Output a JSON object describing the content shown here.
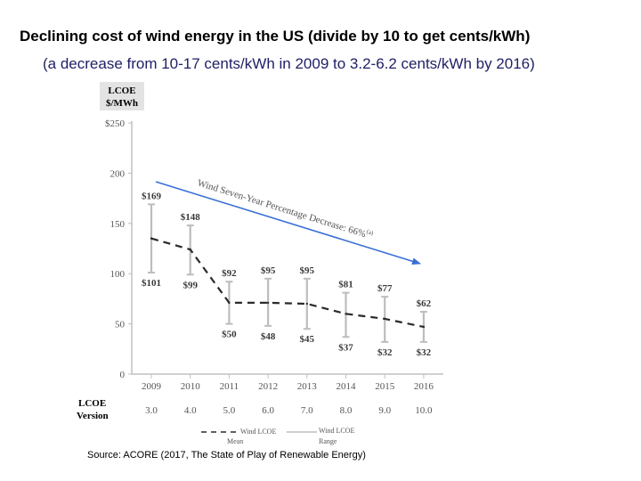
{
  "title": "Declining cost of wind energy in the US (divide by 10 to get cents/kWh)",
  "subtitle": "(a decrease from 10-17 cents/kWh in 2009 to 3.2-6.2 cents/kWh by 2016)",
  "source": "Source: ACORE (2017, The State of Play of Renewable Energy)",
  "colors": {
    "axis": "#c0c0c0",
    "gridline": "#d9d9d9",
    "range_bar": "#bdbdbd",
    "mean_line": "#2a2a2a",
    "trend_arrow": "#3a6fd8",
    "ylabel_box": "#e3e3e3"
  },
  "chart_data": {
    "type": "line",
    "ylabel_line1": "LCOE",
    "ylabel_line2": "$/MWh",
    "ylim": [
      0,
      250
    ],
    "yticks": [
      "0",
      "50",
      "100",
      "150",
      "200",
      "$250"
    ],
    "x": [
      "2009",
      "2010",
      "2011",
      "2012",
      "2013",
      "2014",
      "2015",
      "2016"
    ],
    "version_label_line1": "LCOE",
    "version_label_line2": "Version",
    "versions": [
      "3.0",
      "4.0",
      "5.0",
      "6.0",
      "7.0",
      "8.0",
      "9.0",
      "10.0"
    ],
    "series": [
      {
        "name": "Wind LCOE Mean",
        "style": "dashed",
        "values": [
          135,
          124,
          71,
          71,
          70,
          60,
          55,
          47
        ]
      },
      {
        "name": "Wind LCOE Range",
        "style": "range",
        "high": [
          169,
          148,
          92,
          95,
          95,
          81,
          77,
          62
        ],
        "low": [
          101,
          99,
          50,
          48,
          45,
          37,
          32,
          32
        ],
        "high_labels": [
          "$169",
          "$148",
          "$92",
          "$95",
          "$95",
          "$81",
          "$77",
          "$62"
        ],
        "low_labels": [
          "$101",
          "$99",
          "$50",
          "$48",
          "$45",
          "$37",
          "$32",
          "$32"
        ]
      }
    ],
    "annotation": "Wind Seven-Year Percentage Decrease: 66%",
    "annotation_sup": "(a)",
    "legend": [
      {
        "line1": "Wind LCOE",
        "line2": "Mean"
      },
      {
        "line1": "Wind LCOE",
        "line2": "Range"
      }
    ]
  }
}
